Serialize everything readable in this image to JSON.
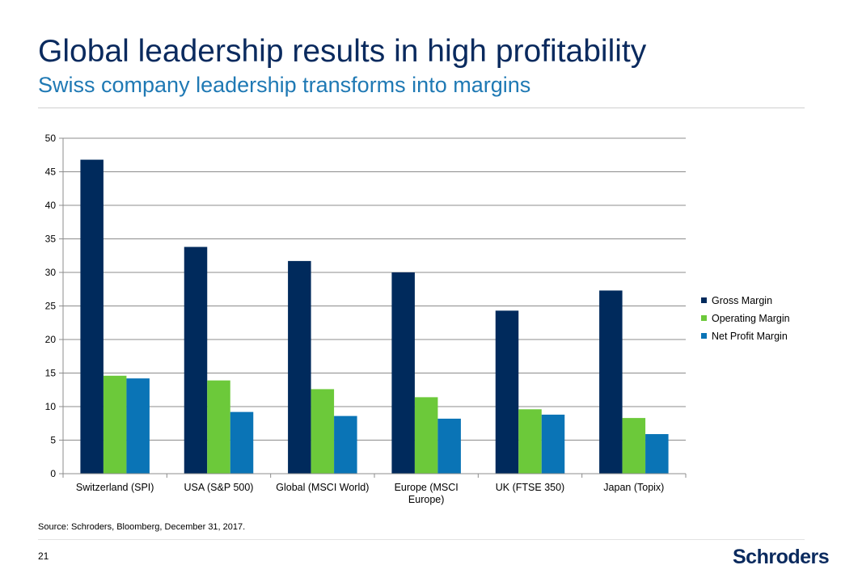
{
  "slide": {
    "title": "Global leadership results in high profitability",
    "subtitle": "Swiss company leadership transforms into margins",
    "source": "Source: Schroders, Bloomberg, December 31, 2017.",
    "page_number": "21",
    "logo_text": "Schroders"
  },
  "chart_data": {
    "type": "bar",
    "categories": [
      [
        "Switzerland (SPI)"
      ],
      [
        "USA (S&P 500)"
      ],
      [
        "Global (MSCI World)"
      ],
      [
        "Europe (MSCI",
        "Europe)"
      ],
      [
        "UK (FTSE 350)"
      ],
      [
        "Japan (Topix)"
      ]
    ],
    "series": [
      {
        "name": "Gross Margin",
        "color": "#002a5c",
        "values": [
          46.8,
          33.8,
          31.7,
          30.0,
          24.3,
          27.3
        ]
      },
      {
        "name": "Operating Margin",
        "color": "#6cc93a",
        "values": [
          14.6,
          13.9,
          12.6,
          11.4,
          9.6,
          8.3
        ]
      },
      {
        "name": "Net Profit Margin",
        "color": "#0a74b6",
        "values": [
          14.2,
          9.2,
          8.6,
          8.2,
          8.8,
          5.9
        ]
      }
    ],
    "ylim": [
      0,
      50
    ],
    "yticks": [
      0,
      5,
      10,
      15,
      20,
      25,
      30,
      35,
      40,
      45,
      50
    ],
    "grid": true,
    "legend": "right"
  }
}
